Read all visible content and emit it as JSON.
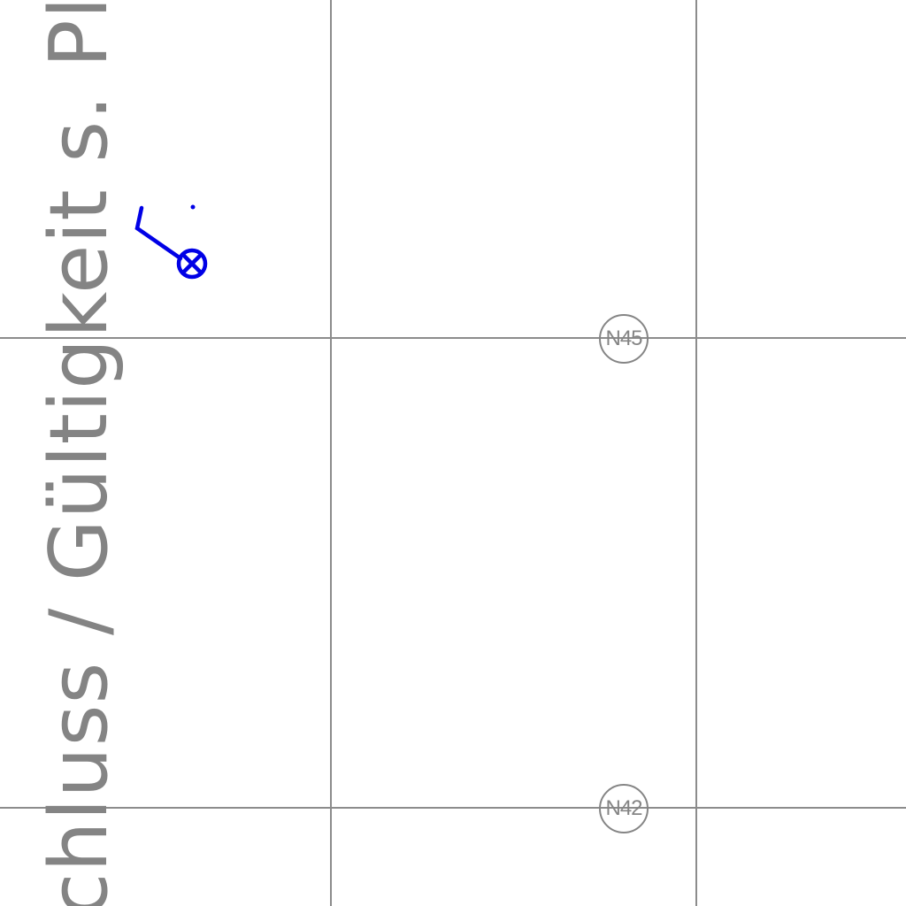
{
  "map": {
    "vertical_annotation": "chluss / Gültigkeit s. Plannu",
    "markers": [
      {
        "label": "N45"
      },
      {
        "label": "N42"
      }
    ],
    "colors": {
      "background": "#ffffff",
      "grid": "#8c8c8c",
      "annotation_text": "#848484",
      "marker": "#858585",
      "symbol": "#0000e6"
    },
    "symbol_icon": "valve-symbol-icon"
  }
}
